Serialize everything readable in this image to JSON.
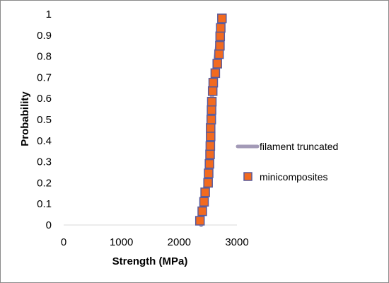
{
  "chart_data": {
    "type": "scatter",
    "xlabel": "Strength (MPa)",
    "ylabel": "Probability",
    "xlim": [
      0,
      3000
    ],
    "ylim": [
      0,
      1
    ],
    "x_ticks": [
      "0",
      "1000",
      "2000",
      "3000"
    ],
    "y_ticks": [
      "0",
      "0.1",
      "0.2",
      "0.3",
      "0.4",
      "0.5",
      "0.6",
      "0.7",
      "0.8",
      "0.9",
      "1"
    ],
    "legend_position": "right",
    "series": [
      {
        "name": "filament truncated",
        "kind": "line",
        "color": "#a39ab7",
        "points": [
          [
            2380,
            0.0
          ],
          [
            2400,
            0.05
          ],
          [
            2420,
            0.1
          ],
          [
            2440,
            0.15
          ],
          [
            2460,
            0.2
          ],
          [
            2475,
            0.25
          ],
          [
            2490,
            0.3
          ],
          [
            2500,
            0.35
          ],
          [
            2510,
            0.4
          ],
          [
            2520,
            0.45
          ],
          [
            2535,
            0.5
          ],
          [
            2550,
            0.55
          ],
          [
            2565,
            0.6
          ],
          [
            2580,
            0.65
          ],
          [
            2595,
            0.7
          ],
          [
            2615,
            0.75
          ],
          [
            2635,
            0.8
          ],
          [
            2660,
            0.85
          ],
          [
            2690,
            0.9
          ],
          [
            2720,
            0.95
          ],
          [
            2745,
            0.98
          ]
        ]
      },
      {
        "name": "minicomposites",
        "kind": "markers",
        "color": "#f26a1f",
        "border": "#5a5a9a",
        "points": [
          [
            2360,
            0.02
          ],
          [
            2400,
            0.065
          ],
          [
            2430,
            0.11
          ],
          [
            2450,
            0.155
          ],
          [
            2500,
            0.2
          ],
          [
            2510,
            0.245
          ],
          [
            2525,
            0.29
          ],
          [
            2535,
            0.335
          ],
          [
            2540,
            0.375
          ],
          [
            2545,
            0.42
          ],
          [
            2545,
            0.46
          ],
          [
            2555,
            0.5
          ],
          [
            2560,
            0.545
          ],
          [
            2565,
            0.585
          ],
          [
            2580,
            0.635
          ],
          [
            2590,
            0.675
          ],
          [
            2625,
            0.72
          ],
          [
            2660,
            0.765
          ],
          [
            2690,
            0.81
          ],
          [
            2705,
            0.85
          ],
          [
            2710,
            0.895
          ],
          [
            2720,
            0.935
          ],
          [
            2740,
            0.98
          ]
        ]
      }
    ]
  }
}
